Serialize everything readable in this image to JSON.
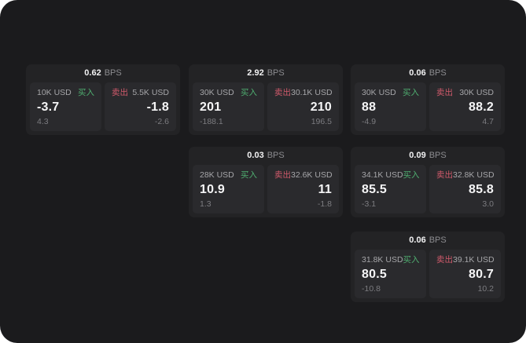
{
  "colors": {
    "page_bg": "#1b1b1d",
    "card_bg": "#232325",
    "panel_bg": "#2a2a2d",
    "buy_green": "#4fae70",
    "sell_red": "#d05a6b"
  },
  "cards": [
    {
      "bps_value": "0.62",
      "bps_unit": "BPS",
      "buy": {
        "amount": "10K USD",
        "side_label": "买入",
        "value": "-3.7",
        "sub_value": "4.3"
      },
      "sell": {
        "side_label": "卖出",
        "amount": "5.5K USD",
        "value": "-1.8",
        "sub_value": "-2.6"
      }
    },
    {
      "bps_value": "2.92",
      "bps_unit": "BPS",
      "buy": {
        "amount": "30K USD",
        "side_label": "买入",
        "value": "201",
        "sub_value": "-188.1"
      },
      "sell": {
        "side_label": "卖出",
        "amount": "30.1K USD",
        "value": "210",
        "sub_value": "196.5"
      }
    },
    {
      "bps_value": "0.06",
      "bps_unit": "BPS",
      "buy": {
        "amount": "30K USD",
        "side_label": "买入",
        "value": "88",
        "sub_value": "-4.9"
      },
      "sell": {
        "side_label": "卖出",
        "amount": "30K USD",
        "value": "88.2",
        "sub_value": "4.7"
      }
    },
    {
      "bps_value": "0.03",
      "bps_unit": "BPS",
      "buy": {
        "amount": "28K USD",
        "side_label": "买入",
        "value": "10.9",
        "sub_value": "1.3"
      },
      "sell": {
        "side_label": "卖出",
        "amount": "32.6K USD",
        "value": "11",
        "sub_value": "-1.8"
      }
    },
    {
      "bps_value": "0.09",
      "bps_unit": "BPS",
      "buy": {
        "amount": "34.1K USD",
        "side_label": "买入",
        "value": "85.5",
        "sub_value": "-3.1"
      },
      "sell": {
        "side_label": "卖出",
        "amount": "32.8K USD",
        "value": "85.8",
        "sub_value": "3.0"
      }
    },
    {
      "bps_value": "0.06",
      "bps_unit": "BPS",
      "buy": {
        "amount": "31.8K USD",
        "side_label": "买入",
        "value": "80.5",
        "sub_value": "-10.8"
      },
      "sell": {
        "side_label": "卖出",
        "amount": "39.1K USD",
        "value": "80.7",
        "sub_value": "10.2"
      }
    }
  ]
}
